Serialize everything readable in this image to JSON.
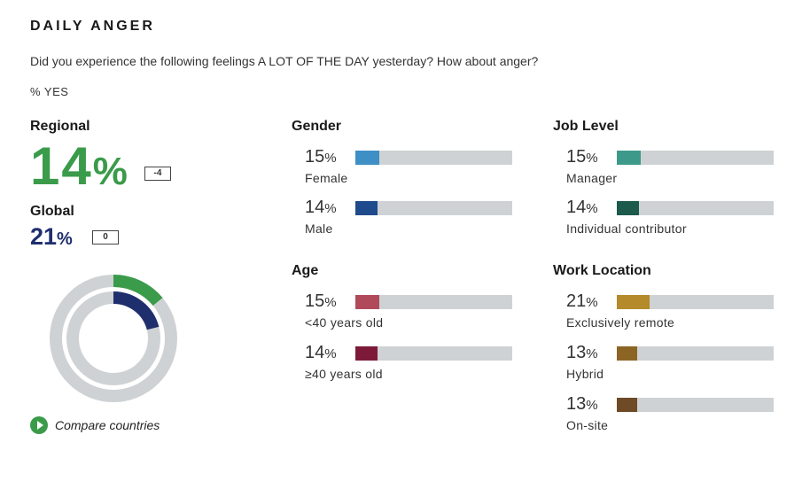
{
  "header": {
    "title": "DAILY ANGER",
    "question": "Did you experience the following feelings A LOT OF THE DAY yesterday? How about anger?",
    "unit": "% YES"
  },
  "summary": {
    "regional": {
      "label": "Regional",
      "value": "14",
      "pct": "%",
      "change": "-4",
      "color": "#3a9b4a"
    },
    "global": {
      "label": "Global",
      "value": "21",
      "pct": "%",
      "change": "0",
      "color": "#1f2f6e"
    }
  },
  "compare_link": {
    "label": "Compare countries"
  },
  "chart_data": [
    {
      "type": "pie",
      "note_series": [
        "Regional (outer ring)",
        "Global (inner ring)"
      ],
      "values": [
        14,
        21
      ],
      "track_color": "#cfd2d4",
      "colors": [
        "#3a9b4a",
        "#1f2f6e"
      ]
    },
    {
      "type": "bar",
      "title": "Gender",
      "categories": [
        "Female",
        "Male"
      ],
      "values": [
        15,
        14
      ],
      "colors": [
        "#3d8fc6",
        "#1f4b8c"
      ],
      "ylim": [
        0,
        100
      ]
    },
    {
      "type": "bar",
      "title": "Age",
      "categories": [
        "<40 years old",
        "≥40 years old"
      ],
      "values": [
        15,
        14
      ],
      "colors": [
        "#b04a5a",
        "#7d1a3a"
      ],
      "ylim": [
        0,
        100
      ]
    },
    {
      "type": "bar",
      "title": "Job Level",
      "categories": [
        "Manager",
        "Individual contributor"
      ],
      "values": [
        15,
        14
      ],
      "colors": [
        "#3d9a8a",
        "#1c5a4c"
      ],
      "ylim": [
        0,
        100
      ]
    },
    {
      "type": "bar",
      "title": "Work Location",
      "categories": [
        "Exclusively remote",
        "Hybrid",
        "On-site"
      ],
      "values": [
        21,
        13,
        13
      ],
      "colors": [
        "#b58a2a",
        "#8c6424",
        "#6e4a26"
      ],
      "ylim": [
        0,
        100
      ]
    }
  ]
}
